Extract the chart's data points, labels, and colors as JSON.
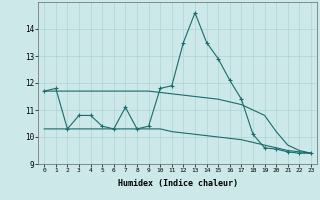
{
  "xlabel": "Humidex (Indice chaleur)",
  "ylabel": "",
  "bg_color": "#cce8e8",
  "line_color": "#1a6b6b",
  "grid_color": "#aad4d4",
  "x": [
    0,
    1,
    2,
    3,
    4,
    5,
    6,
    7,
    8,
    9,
    10,
    11,
    12,
    13,
    14,
    15,
    16,
    17,
    18,
    19,
    20,
    21,
    22,
    23
  ],
  "line1": [
    11.7,
    11.8,
    10.3,
    10.8,
    10.8,
    10.4,
    10.3,
    11.1,
    10.3,
    10.4,
    11.8,
    11.9,
    13.5,
    14.6,
    13.5,
    12.9,
    12.1,
    11.4,
    10.1,
    9.6,
    9.55,
    9.45,
    9.4,
    9.4
  ],
  "line2": [
    10.3,
    10.3,
    10.3,
    10.3,
    10.3,
    10.3,
    10.3,
    10.3,
    10.3,
    10.3,
    10.3,
    10.2,
    10.15,
    10.1,
    10.05,
    10.0,
    9.95,
    9.9,
    9.8,
    9.7,
    9.6,
    9.5,
    9.45,
    9.4
  ],
  "line3": [
    11.7,
    11.7,
    11.7,
    11.7,
    11.7,
    11.7,
    11.7,
    11.7,
    11.7,
    11.7,
    11.65,
    11.6,
    11.55,
    11.5,
    11.45,
    11.4,
    11.3,
    11.2,
    11.0,
    10.8,
    10.2,
    9.7,
    9.5,
    9.4
  ],
  "ylim": [
    9.0,
    15.0
  ],
  "yticks": [
    9,
    10,
    11,
    12,
    13,
    14
  ],
  "xticks": [
    0,
    1,
    2,
    3,
    4,
    5,
    6,
    7,
    8,
    9,
    10,
    11,
    12,
    13,
    14,
    15,
    16,
    17,
    18,
    19,
    20,
    21,
    22,
    23
  ],
  "figw": 3.2,
  "figh": 2.0,
  "dpi": 100
}
